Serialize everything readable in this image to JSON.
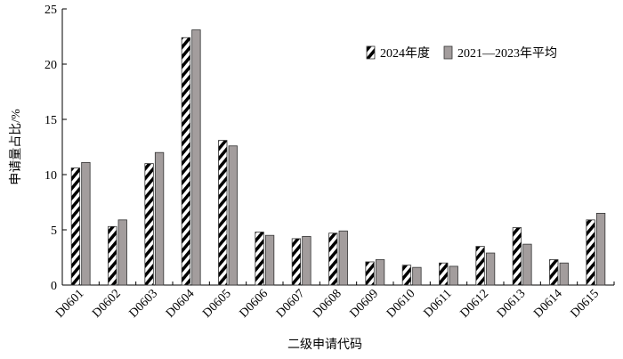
{
  "chart_data": {
    "type": "bar",
    "x_label": "二级申请代码",
    "y_label": "申请量占比/%",
    "categories": [
      "D0601",
      "D0602",
      "D0603",
      "D0604",
      "D0605",
      "D0606",
      "D0607",
      "D0608",
      "D0609",
      "D0610",
      "D0611",
      "D0612",
      "D0613",
      "D0614",
      "D0615"
    ],
    "series": [
      {
        "name": "2024年度",
        "color": "#000000",
        "hatch": true,
        "values": [
          10.6,
          5.3,
          11.0,
          22.4,
          13.1,
          4.8,
          4.2,
          4.7,
          2.1,
          1.8,
          2.0,
          3.5,
          5.2,
          2.3,
          5.9
        ]
      },
      {
        "name": "2021—2023年平均",
        "color": "#a39d9d",
        "hatch": false,
        "values": [
          11.1,
          5.9,
          12.0,
          23.1,
          12.6,
          4.5,
          4.4,
          4.9,
          2.3,
          1.6,
          1.7,
          2.9,
          3.7,
          2.0,
          6.5
        ]
      }
    ],
    "ylim": [
      0,
      25
    ],
    "yticks": [
      0,
      5,
      10,
      15,
      20,
      25
    ],
    "grid": false,
    "legend": "top-right"
  }
}
